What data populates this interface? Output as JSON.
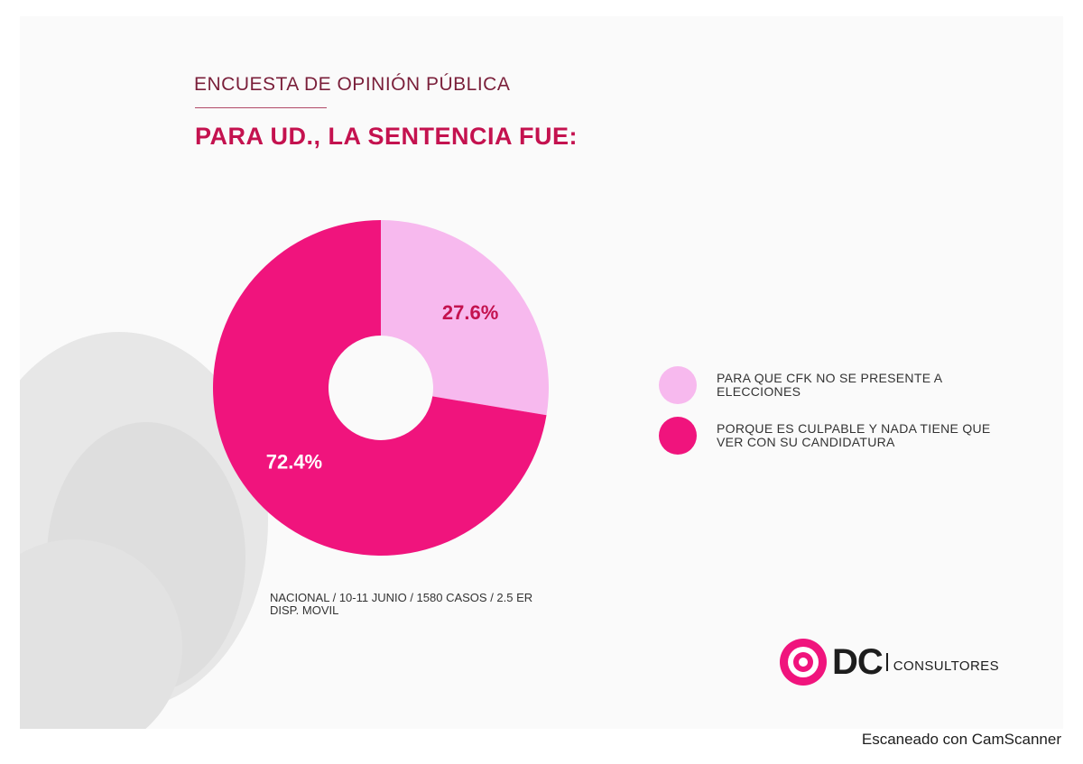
{
  "header": {
    "kicker": "ENCUESTA DE OPINIÓN PÚBLICA",
    "title": "PARA UD., LA SENTENCIA FUE:"
  },
  "chart_data": {
    "type": "pie",
    "donut": true,
    "categories": [
      "PARA QUE CFK NO SE PRESENTE A ELECCIONES",
      "PORQUE ES CULPABLE Y NADA TIENE QUE VER CON SU CANDIDATURA"
    ],
    "values": [
      27.6,
      72.4
    ],
    "labels": [
      "27.6%",
      "72.4%"
    ],
    "colors": [
      "#f7b9ee",
      "#f0147d"
    ],
    "label_colors": [
      "#c4124f",
      "#ffffff"
    ],
    "legend_position": "right"
  },
  "legend": [
    {
      "text": "PARA QUE CFK NO SE PRESENTE A ELECCIONES",
      "color": "#f7b9ee"
    },
    {
      "text": "PORQUE ES CULPABLE Y NADA TIENE QUE VER CON SU CANDIDATURA",
      "color": "#f0147d"
    }
  ],
  "source": "NACIONAL / 10-11 JUNIO / 1580 CASOS / 2.5 ER\nDISP. MOVIL",
  "logo": {
    "mark": "DC",
    "name": "CONSULTORES",
    "ring_color": "#f0147d"
  },
  "footer": {
    "scanner": "Escaneado con CamScanner"
  }
}
